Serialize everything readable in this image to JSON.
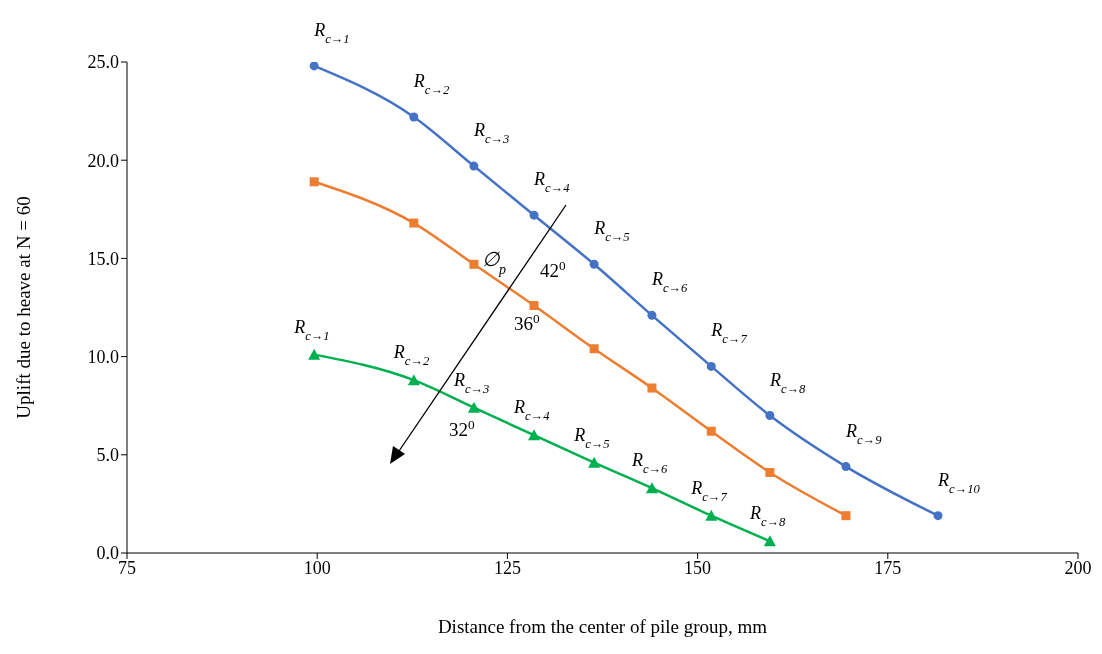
{
  "chart_data": {
    "type": "line",
    "xlabel": "Distance from the center of pile group, mm",
    "ylabel": "Uplift due to heave at N = 60",
    "xlim": [
      75,
      200
    ],
    "xticks": [
      75,
      100,
      125,
      150,
      175,
      200
    ],
    "ylim": [
      0,
      25
    ],
    "yticks": [
      {
        "value": 0,
        "label": "0.0"
      },
      {
        "value": 5,
        "label": "5.0"
      },
      {
        "value": 10,
        "label": "10.0"
      },
      {
        "value": 15,
        "label": "15.0"
      },
      {
        "value": 20,
        "label": "20.0"
      },
      {
        "value": 25,
        "label": "25.0"
      }
    ],
    "grid": false,
    "line_style": "solid",
    "series": [
      {
        "name": "42$^{0}$",
        "color": "#4472c4",
        "marker": "circle",
        "x": [
          99.6,
          112.7,
          120.6,
          128.5,
          136.4,
          144.0,
          151.8,
          159.5,
          169.5,
          181.6
        ],
        "values": [
          24.8,
          22.2,
          19.7,
          17.2,
          14.7,
          12.1,
          9.5,
          7.0,
          4.4,
          1.9
        ]
      },
      {
        "name": "36$^{0}$",
        "color": "#ed7d31",
        "marker": "square",
        "x": [
          99.6,
          112.7,
          120.6,
          128.5,
          136.4,
          144.0,
          151.8,
          159.5,
          169.5
        ],
        "values": [
          18.9,
          16.8,
          14.7,
          12.6,
          10.4,
          8.4,
          6.2,
          4.1,
          1.9
        ]
      },
      {
        "name": "32$^{0}$",
        "color": "#00b050",
        "marker": "triangle",
        "x": [
          99.6,
          112.7,
          120.6,
          128.5,
          136.4,
          144.0,
          151.8,
          159.5
        ],
        "values": [
          10.1,
          8.8,
          7.4,
          6.0,
          4.6,
          3.3,
          1.9,
          0.6
        ]
      }
    ],
    "annotations": [
      {
        "text": "R$_{c→1}$",
        "x": 99.6,
        "y": 24.8
      },
      {
        "text": "R$_{c→2}$",
        "x": 112.7,
        "y": 22.2
      },
      {
        "text": "R$_{c→3}$",
        "x": 120.6,
        "y": 19.7
      },
      {
        "text": "R$_{c→4}$",
        "x": 128.5,
        "y": 17.2
      },
      {
        "text": "R$_{c→5}$",
        "x": 136.4,
        "y": 14.7
      },
      {
        "text": "R$_{c→6}$",
        "x": 144.0,
        "y": 12.1
      },
      {
        "text": "R$_{c→7}$",
        "x": 151.8,
        "y": 9.5
      },
      {
        "text": "R$_{c→8}$",
        "x": 159.5,
        "y": 7.0
      },
      {
        "text": "R$_{c→9}$",
        "x": 169.5,
        "y": 4.4
      },
      {
        "text": "R$_{c→10}$",
        "x": 181.6,
        "y": 1.9
      },
      {
        "text": "R$_{c→1}$",
        "x": 99.6,
        "y": 10.1
      },
      {
        "text": "R$_{c→2}$",
        "x": 112.7,
        "y": 8.8
      },
      {
        "text": "R$_{c→3}$",
        "x": 120.6,
        "y": 7.4
      },
      {
        "text": "R$_{c→4}$",
        "x": 128.5,
        "y": 6.0
      },
      {
        "text": "R$_{c→5}$",
        "x": 136.4,
        "y": 4.6
      },
      {
        "text": "R$_{c→6}$",
        "x": 144.0,
        "y": 3.3
      },
      {
        "text": "R$_{c→7}$",
        "x": 151.8,
        "y": 1.9
      },
      {
        "text": "R$_{c→8}$",
        "x": 159.5,
        "y": 0.6
      },
      "∅$_{p}$"
    ]
  }
}
